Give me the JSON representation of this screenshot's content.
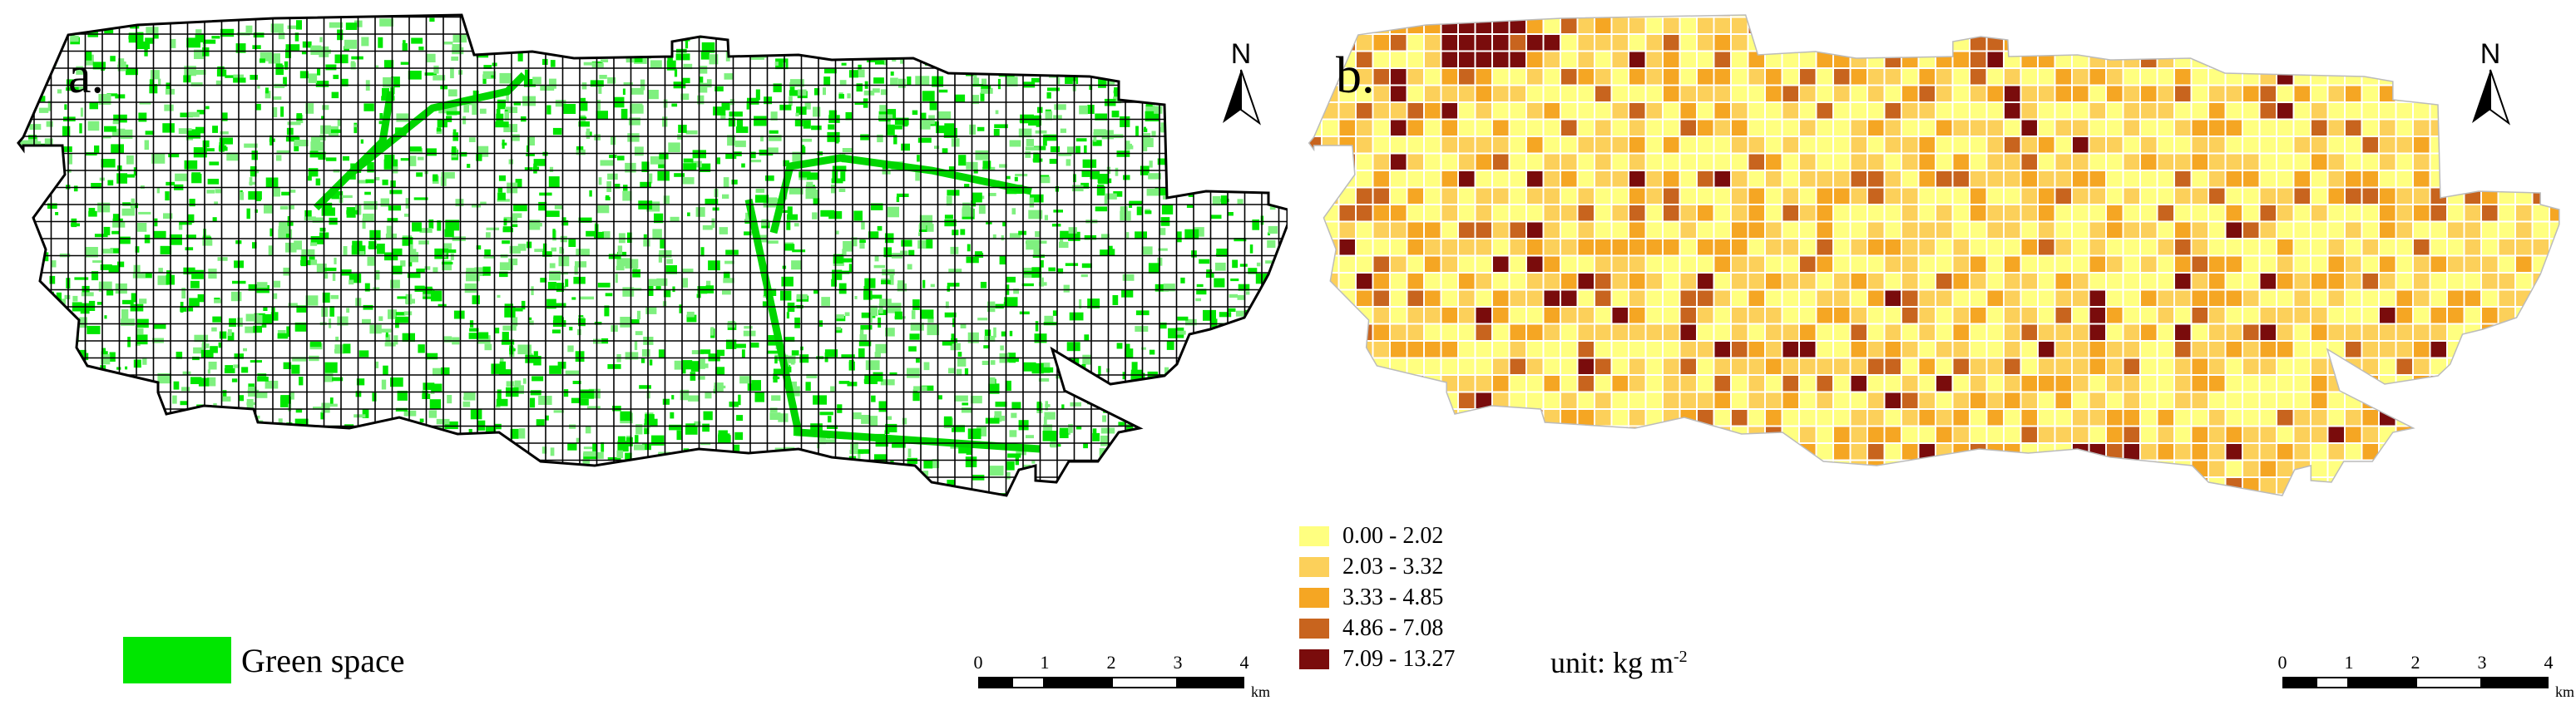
{
  "panel_a": {
    "label": "a.",
    "north_label": "N",
    "legend_label": "Green space",
    "legend_color": "#00e600",
    "scale_ticks": [
      "0",
      "1",
      "2",
      "3",
      "4"
    ],
    "scale_unit": "km"
  },
  "panel_b": {
    "label": "b.",
    "north_label": "N",
    "legend": [
      {
        "label": "0.00 - 2.02",
        "color": "#ffff80"
      },
      {
        "label": "2.03 - 3.32",
        "color": "#fcd05a"
      },
      {
        "label": "3.33 - 4.85",
        "color": "#f5a623"
      },
      {
        "label": "4.86 - 7.08",
        "color": "#c8641e"
      },
      {
        "label": "7.09 - 13.27",
        "color": "#7a0c0c"
      }
    ],
    "unit_text": "unit: kg m",
    "unit_sup": "-2",
    "scale_ticks": [
      "0",
      "1",
      "2",
      "3",
      "4"
    ],
    "scale_unit": "km"
  }
}
